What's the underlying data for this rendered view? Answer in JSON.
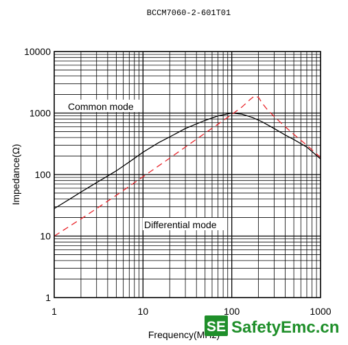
{
  "watermark": {
    "badge": "SE",
    "text": "SafetyEmc.cn",
    "color": "#1f8f2a"
  },
  "chart_data": {
    "type": "line",
    "title": "BCCM7060-2-601T01",
    "xlabel": "Frequency(MHz)",
    "ylabel": "Impedance(Ω)",
    "x_scale": "log",
    "y_scale": "log",
    "xlim": [
      1,
      1000
    ],
    "ylim": [
      1,
      10000
    ],
    "x_ticks": [
      "1",
      "10",
      "100",
      "1000"
    ],
    "y_ticks": [
      "1",
      "10",
      "100",
      "1000",
      "10000"
    ],
    "grid": true,
    "series": [
      {
        "name": "Common mode",
        "color": "#000000",
        "style": "solid",
        "x": [
          1,
          1.5,
          2,
          3,
          5,
          7,
          10,
          15,
          20,
          30,
          50,
          70,
          100,
          130,
          170,
          220,
          300,
          400,
          500,
          700,
          1000
        ],
        "y": [
          28,
          40,
          52,
          74,
          115,
          160,
          230,
          330,
          410,
          560,
          760,
          900,
          1000,
          960,
          850,
          720,
          560,
          440,
          370,
          280,
          180
        ]
      },
      {
        "name": "Differential mode",
        "color": "#e8242a",
        "style": "dashed",
        "x": [
          1,
          2,
          3,
          5,
          10,
          20,
          30,
          50,
          70,
          100,
          130,
          160,
          180,
          200,
          220,
          250,
          300,
          400,
          500,
          700,
          1000
        ],
        "y": [
          10,
          19,
          28,
          46,
          92,
          185,
          280,
          470,
          660,
          950,
          1250,
          1650,
          1900,
          1800,
          1450,
          1150,
          880,
          600,
          450,
          300,
          190
        ]
      }
    ]
  }
}
